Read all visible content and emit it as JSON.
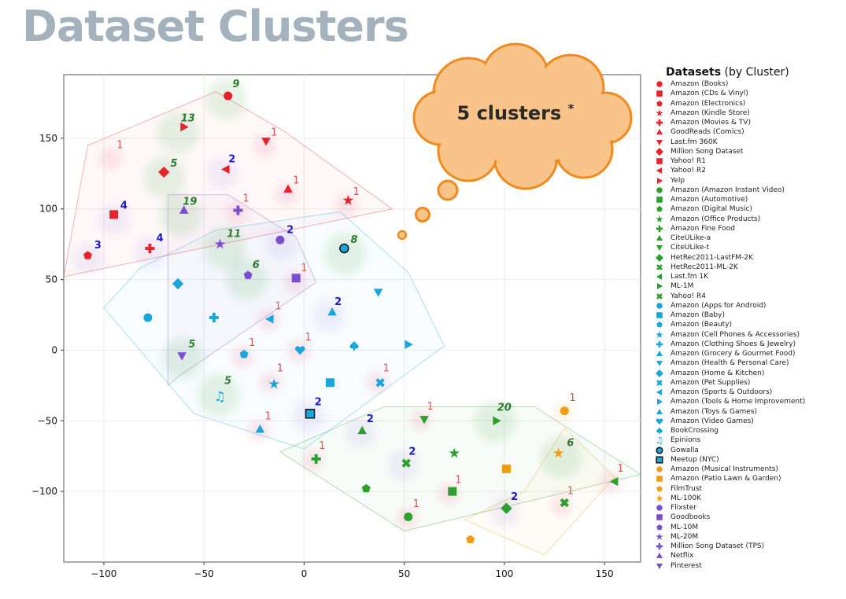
{
  "page_title": "Dataset Clusters",
  "annotation": {
    "text": "5 clusters",
    "footnote_mark": "*"
  },
  "colors": {
    "red": "#e8222b",
    "green": "#2ca02c",
    "blue": "#17a7dc",
    "orange": "#f39c12",
    "purple": "#7a4fcf",
    "title": "#a3b2bd",
    "cloud_fill": "#f9c48a",
    "cloud_stroke": "#f08a1c"
  },
  "chart_data": {
    "type": "scatter",
    "xlim": [
      -120,
      168
    ],
    "ylim": [
      -150,
      195
    ],
    "x_ticks": [
      -100,
      -50,
      0,
      50,
      100,
      150
    ],
    "y_ticks": [
      -100,
      -50,
      0,
      50,
      100,
      150
    ],
    "x_tick_labels": [
      "−100",
      "−50",
      "0",
      "50",
      "100",
      "150"
    ],
    "y_tick_labels": [
      "−100",
      "−50",
      "0",
      "50",
      "100",
      "150"
    ],
    "legend": {
      "title_bold": "Datasets",
      "title_rest": " (by Cluster)",
      "position": "right"
    },
    "clusters": [
      {
        "name": "red",
        "color": "#e8222b",
        "hull": [
          [
            -120,
            52
          ],
          [
            -108,
            145
          ],
          [
            -44,
            183
          ],
          [
            -10,
            155
          ],
          [
            44,
            100
          ]
        ]
      },
      {
        "name": "purple",
        "color": "#7a4fcf",
        "hull": [
          [
            -68,
            110
          ],
          [
            -38,
            110
          ],
          [
            -4,
            80
          ],
          [
            6,
            48
          ],
          [
            -62,
            -18
          ],
          [
            -68,
            -25
          ]
        ]
      },
      {
        "name": "blue",
        "color": "#17a7dc",
        "hull": [
          [
            -100,
            30
          ],
          [
            -82,
            58
          ],
          [
            -44,
            85
          ],
          [
            18,
            98
          ],
          [
            52,
            55
          ],
          [
            70,
            3
          ],
          [
            0,
            -70
          ],
          [
            -55,
            -45
          ]
        ]
      },
      {
        "name": "green",
        "color": "#2ca02c",
        "hull": [
          [
            -12,
            -72
          ],
          [
            40,
            -40
          ],
          [
            115,
            -40
          ],
          [
            168,
            -88
          ],
          [
            50,
            -128
          ]
        ]
      },
      {
        "name": "orange",
        "color": "#f39c12",
        "hull": [
          [
            80,
            -120
          ],
          [
            110,
            -100
          ],
          [
            130,
            -55
          ],
          [
            155,
            -90
          ],
          [
            120,
            -145
          ]
        ]
      }
    ],
    "datasets": [
      {
        "name": "Amazon (Books)",
        "color": "#e8222b",
        "marker": "circle",
        "x": -38,
        "y": 180
      },
      {
        "name": "Amazon (CDs & Vinyl)",
        "color": "#e8222b",
        "marker": "square",
        "x": -95,
        "y": 96
      },
      {
        "name": "Amazon (Electronics)",
        "color": "#e8222b",
        "marker": "pentagon",
        "x": -108,
        "y": 67
      },
      {
        "name": "Amazon (Kindle Store)",
        "color": "#e8222b",
        "marker": "star",
        "x": 22,
        "y": 106
      },
      {
        "name": "Amazon (Movies & TV)",
        "color": "#e8222b",
        "marker": "plus",
        "x": -77,
        "y": 72
      },
      {
        "name": "GoodReads (Comics)",
        "color": "#e8222b",
        "marker": "triangle-up",
        "x": -8,
        "y": 114
      },
      {
        "name": "Last.fm 360K",
        "color": "#e8222b",
        "marker": "triangle-down",
        "x": -19,
        "y": 148
      },
      {
        "name": "Million Song Dataset",
        "color": "#e8222b",
        "marker": "diamond",
        "x": -70,
        "y": 126
      },
      {
        "name": "Yahoo! R1",
        "color": "#e8222b",
        "marker": "square",
        "x": -95,
        "y": 96,
        "hidden": true
      },
      {
        "name": "Yahoo! R2",
        "color": "#e8222b",
        "marker": "triangle-left",
        "x": -39,
        "y": 128
      },
      {
        "name": "Yelp",
        "color": "#e8222b",
        "marker": "triangle-right",
        "x": -60,
        "y": 158
      },
      {
        "name": "Amazon (Amazon Instant Video)",
        "color": "#2ca02c",
        "marker": "circle",
        "x": 52,
        "y": -118
      },
      {
        "name": "Amazon (Automotive)",
        "color": "#2ca02c",
        "marker": "square",
        "x": 74,
        "y": -100
      },
      {
        "name": "Amazon (Digital Music)",
        "color": "#2ca02c",
        "marker": "pentagon",
        "x": 31,
        "y": -98
      },
      {
        "name": "Amazon (Office Products)",
        "color": "#2ca02c",
        "marker": "star",
        "x": 75,
        "y": -73
      },
      {
        "name": "Amazon Fine Food",
        "color": "#2ca02c",
        "marker": "plus",
        "x": 6,
        "y": -77
      },
      {
        "name": "CiteULike-a",
        "color": "#2ca02c",
        "marker": "triangle-up",
        "x": 29,
        "y": -57
      },
      {
        "name": "CiteULike-t",
        "color": "#2ca02c",
        "marker": "triangle-down",
        "x": 60,
        "y": -49
      },
      {
        "name": "HetRec2011-LastFM-2K",
        "color": "#2ca02c",
        "marker": "diamond",
        "x": 101,
        "y": -112
      },
      {
        "name": "HetRec2011-ML-2K",
        "color": "#2ca02c",
        "marker": "x",
        "x": 51,
        "y": -80
      },
      {
        "name": "Last.fm 1K",
        "color": "#2ca02c",
        "marker": "triangle-left",
        "x": 155,
        "y": -93
      },
      {
        "name": "ML-1M",
        "color": "#2ca02c",
        "marker": "triangle-right",
        "x": 96,
        "y": -50
      },
      {
        "name": "Yahoo! R4",
        "color": "#2ca02c",
        "marker": "x",
        "x": 130,
        "y": -108
      },
      {
        "name": "Amazon (Apps for Android)",
        "color": "#17a7dc",
        "marker": "circle",
        "x": -78,
        "y": 23
      },
      {
        "name": "Amazon (Baby)",
        "color": "#17a7dc",
        "marker": "square",
        "x": 13,
        "y": -23
      },
      {
        "name": "Amazon (Beauty)",
        "color": "#17a7dc",
        "marker": "pentagon",
        "x": -30,
        "y": -3
      },
      {
        "name": "Amazon (Cell Phones & Accessories)",
        "color": "#17a7dc",
        "marker": "star",
        "x": -15,
        "y": -24
      },
      {
        "name": "Amazon (Clothing Shoes & Jewelry)",
        "color": "#17a7dc",
        "marker": "plus",
        "x": -45,
        "y": 23
      },
      {
        "name": "Amazon (Grocery & Gourmet Food)",
        "color": "#17a7dc",
        "marker": "triangle-up",
        "x": -22,
        "y": -56
      },
      {
        "name": "Amazon (Health & Personal Care)",
        "color": "#17a7dc",
        "marker": "triangle-down",
        "x": 37,
        "y": 41
      },
      {
        "name": "Amazon (Home & Kitchen)",
        "color": "#17a7dc",
        "marker": "diamond",
        "x": -63,
        "y": 47
      },
      {
        "name": "Amazon (Pet Supplies)",
        "color": "#17a7dc",
        "marker": "x",
        "x": 38,
        "y": -23
      },
      {
        "name": "Amazon (Sports & Outdoors)",
        "color": "#17a7dc",
        "marker": "triangle-left",
        "x": -17,
        "y": 22
      },
      {
        "name": "Amazon (Tools & Home Improvement)",
        "color": "#17a7dc",
        "marker": "triangle-right",
        "x": 52,
        "y": 4
      },
      {
        "name": "Amazon (Toys & Games)",
        "color": "#17a7dc",
        "marker": "triangle-up",
        "x": 14,
        "y": 27
      },
      {
        "name": "Amazon (Video Games)",
        "color": "#17a7dc",
        "marker": "heart",
        "x": -2,
        "y": 0
      },
      {
        "name": "BookCrossing",
        "color": "#17a7dc",
        "marker": "spade",
        "x": 25,
        "y": 3
      },
      {
        "name": "Epinions",
        "color": "#17a7dc",
        "marker": "note",
        "x": -42,
        "y": -33
      },
      {
        "name": "Gowalla",
        "color": "#17a7dc",
        "marker": "circle-outlined",
        "x": 20,
        "y": 72
      },
      {
        "name": "Meetup (NYC)",
        "color": "#17a7dc",
        "marker": "square-outlined",
        "x": 3,
        "y": -45
      },
      {
        "name": "Amazon (Musical Instruments)",
        "color": "#f39c12",
        "marker": "circle",
        "x": 130,
        "y": -43
      },
      {
        "name": "Amazon (Patio Lawn & Garden)",
        "color": "#f39c12",
        "marker": "square",
        "x": 101,
        "y": -84
      },
      {
        "name": "FilmTrust",
        "color": "#f39c12",
        "marker": "pentagon",
        "x": 83,
        "y": -134
      },
      {
        "name": "ML-100K",
        "color": "#f39c12",
        "marker": "star",
        "x": 127,
        "y": -73
      },
      {
        "name": "Flixster",
        "color": "#7a4fcf",
        "marker": "circle",
        "x": -12,
        "y": 78
      },
      {
        "name": "Goodbooks",
        "color": "#7a4fcf",
        "marker": "square",
        "x": -4,
        "y": 51
      },
      {
        "name": "ML-10M",
        "color": "#7a4fcf",
        "marker": "pentagon",
        "x": -28,
        "y": 53
      },
      {
        "name": "ML-20M",
        "color": "#7a4fcf",
        "marker": "star",
        "x": -42,
        "y": 75
      },
      {
        "name": "Million Song Dataset (TPS)",
        "color": "#7a4fcf",
        "marker": "plus",
        "x": -33,
        "y": 99
      },
      {
        "name": "Netflix",
        "color": "#7a4fcf",
        "marker": "triangle-up",
        "x": -60,
        "y": 99
      },
      {
        "name": "Pinterest",
        "color": "#7a4fcf",
        "marker": "triangle-down",
        "x": -61,
        "y": -4
      }
    ],
    "count_labels": [
      {
        "text": "9",
        "x": -34,
        "y": 186,
        "color": "#2e7d32",
        "italic": true,
        "halo": "#2ca02c"
      },
      {
        "text": "13",
        "x": -58,
        "y": 162,
        "color": "#2e7d32",
        "italic": true,
        "halo": "#2ca02c"
      },
      {
        "text": "5",
        "x": -65,
        "y": 130,
        "color": "#2e7d32",
        "italic": true,
        "halo": "#2ca02c"
      },
      {
        "text": "19",
        "x": -57,
        "y": 103,
        "color": "#2e7d32",
        "italic": true,
        "halo": "#2ca02c"
      },
      {
        "text": "11",
        "x": -35,
        "y": 80,
        "color": "#2e7d32",
        "italic": true,
        "halo": "#2ca02c"
      },
      {
        "text": "6",
        "x": -24,
        "y": 58,
        "color": "#2e7d32",
        "italic": true,
        "halo": "#2ca02c"
      },
      {
        "text": "8",
        "x": 25,
        "y": 76,
        "color": "#2e7d32",
        "italic": true,
        "halo": "#2ca02c"
      },
      {
        "text": "5",
        "x": -56,
        "y": 2,
        "color": "#2e7d32",
        "italic": true,
        "halo": "#2ca02c"
      },
      {
        "text": "5",
        "x": -38,
        "y": -24,
        "color": "#2e7d32",
        "italic": true,
        "halo": "#2ca02c"
      },
      {
        "text": "20",
        "x": 100,
        "y": -43,
        "color": "#2e7d32",
        "italic": true,
        "halo": "#2ca02c"
      },
      {
        "text": "6",
        "x": 133,
        "y": -68,
        "color": "#2e7d32",
        "italic": true,
        "halo": "#2ca02c"
      },
      {
        "text": "2",
        "x": -36,
        "y": 133,
        "color": "#1a1acc",
        "italic": false,
        "halo": "#7a4fcf"
      },
      {
        "text": "4",
        "x": -90,
        "y": 100,
        "color": "#1a1acc",
        "italic": false,
        "halo": "#7a4fcf"
      },
      {
        "text": "3",
        "x": -103,
        "y": 72,
        "color": "#1a1acc",
        "italic": false,
        "halo": "#7a4fcf"
      },
      {
        "text": "4",
        "x": -72,
        "y": 77,
        "color": "#1a1acc",
        "italic": false,
        "halo": "#7a4fcf"
      },
      {
        "text": "2",
        "x": -7,
        "y": 83,
        "color": "#1a1acc",
        "italic": false,
        "halo": "#7a4fcf"
      },
      {
        "text": "2",
        "x": 17,
        "y": 32,
        "color": "#1a1acc",
        "italic": false,
        "halo": "#7a4fcf"
      },
      {
        "text": "2",
        "x": 7,
        "y": -39,
        "color": "#1a1acc",
        "italic": false,
        "halo": "#7a4fcf"
      },
      {
        "text": "2",
        "x": 33,
        "y": -51,
        "color": "#1a1acc",
        "italic": false,
        "halo": "#7a4fcf"
      },
      {
        "text": "2",
        "x": 54,
        "y": -74,
        "color": "#1a1acc",
        "italic": false,
        "halo": "#7a4fcf"
      },
      {
        "text": "2",
        "x": 105,
        "y": -106,
        "color": "#1a1acc",
        "italic": false,
        "halo": "#7a4fcf"
      },
      {
        "text": "1",
        "x": -92,
        "y": 143,
        "color": "#d9534f",
        "italic": false,
        "halo": "#e8222b"
      },
      {
        "text": "1",
        "x": -15,
        "y": 152,
        "color": "#d9534f",
        "italic": false,
        "halo": "#e8222b"
      },
      {
        "text": "1",
        "x": -4,
        "y": 118,
        "color": "#d9534f",
        "italic": false,
        "halo": "#e8222b"
      },
      {
        "text": "1",
        "x": 26,
        "y": 110,
        "color": "#d9534f",
        "italic": false,
        "halo": "#e8222b"
      },
      {
        "text": "1",
        "x": -29,
        "y": 105,
        "color": "#d9534f",
        "italic": false,
        "halo": "#e8222b"
      },
      {
        "text": "1",
        "x": 0,
        "y": 56,
        "color": "#d9534f",
        "italic": false,
        "halo": "#e8222b"
      },
      {
        "text": "1",
        "x": -13,
        "y": 29,
        "color": "#d9534f",
        "italic": false,
        "halo": "#e8222b"
      },
      {
        "text": "1",
        "x": -26,
        "y": 3,
        "color": "#d9534f",
        "italic": false,
        "halo": "#e8222b"
      },
      {
        "text": "1",
        "x": 2,
        "y": 7,
        "color": "#d9534f",
        "italic": false,
        "halo": "#e8222b"
      },
      {
        "text": "1",
        "x": -12,
        "y": -15,
        "color": "#d9534f",
        "italic": false,
        "halo": "#e8222b"
      },
      {
        "text": "1",
        "x": 41,
        "y": -15,
        "color": "#d9534f",
        "italic": false,
        "halo": "#e8222b"
      },
      {
        "text": "1",
        "x": -18,
        "y": -49,
        "color": "#d9534f",
        "italic": false,
        "halo": "#e8222b"
      },
      {
        "text": "1",
        "x": 63,
        "y": -42,
        "color": "#d9534f",
        "italic": false,
        "halo": "#e8222b"
      },
      {
        "text": "1",
        "x": 9,
        "y": -70,
        "color": "#d9534f",
        "italic": false,
        "halo": "#e8222b"
      },
      {
        "text": "1",
        "x": 77,
        "y": -94,
        "color": "#d9534f",
        "italic": false,
        "halo": "#e8222b"
      },
      {
        "text": "1",
        "x": 56,
        "y": -111,
        "color": "#d9534f",
        "italic": false,
        "halo": "#e8222b"
      },
      {
        "text": "1",
        "x": 134,
        "y": -36,
        "color": "#d9534f",
        "italic": false,
        "halo": "#f39c12"
      },
      {
        "text": "1",
        "x": 133,
        "y": -102,
        "color": "#d9534f",
        "italic": false,
        "halo": "#e8222b"
      },
      {
        "text": "1",
        "x": 158,
        "y": -86,
        "color": "#d9534f",
        "italic": false,
        "halo": "#e8222b"
      }
    ]
  }
}
